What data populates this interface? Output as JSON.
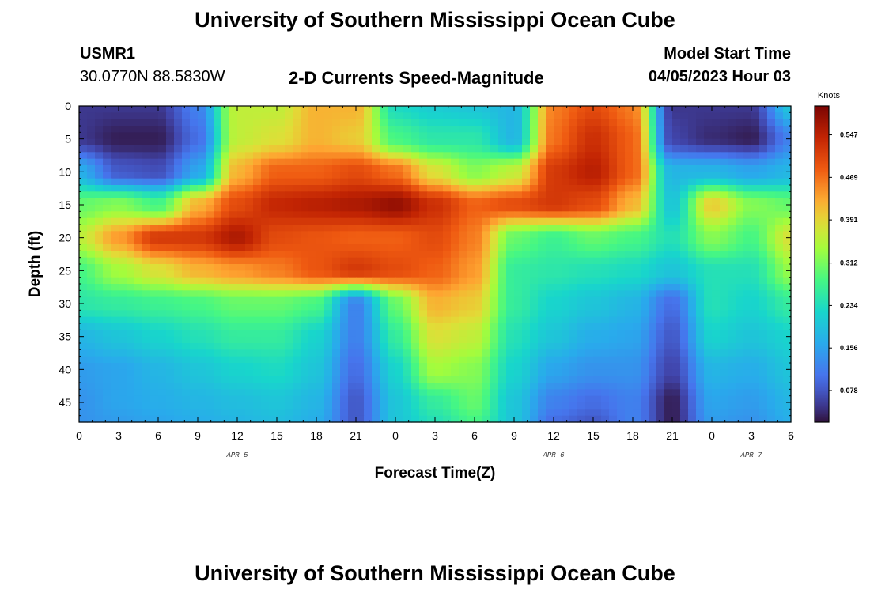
{
  "header": {
    "title": "University of Southern Mississippi Ocean Cube",
    "station_id": "USMR1",
    "coordinates": "30.0770N  88.5830W",
    "subtitle": "2-D Currents Speed-Magnitude",
    "model_start_label": "Model Start Time",
    "model_start_value": "04/05/2023 Hour 03"
  },
  "footer": {
    "title": "University of Southern Mississippi Ocean Cube"
  },
  "chart_data": {
    "type": "heatmap",
    "title": "2-D Currents Speed-Magnitude",
    "xlabel": "Forecast Time(Z)",
    "ylabel": "Depth (ft)",
    "x_tick_labels": [
      "0",
      "3",
      "6",
      "9",
      "12",
      "15",
      "18",
      "21",
      "0",
      "3",
      "6",
      "9",
      "12",
      "15",
      "18",
      "21",
      "0",
      "3",
      "6"
    ],
    "x_date_labels": [
      "APR 5",
      "APR 6",
      "APR 7"
    ],
    "x_range_hours": [
      0,
      54
    ],
    "y_tick_labels": [
      "0",
      "5",
      "10",
      "15",
      "20",
      "25",
      "30",
      "35",
      "40",
      "45"
    ],
    "ylim": [
      0,
      48
    ],
    "y_inverted": true,
    "colorbar": {
      "title": "Knots",
      "tick_labels": [
        "0.078",
        "0.156",
        "0.234",
        "0.312",
        "0.391",
        "0.469",
        "0.547"
      ],
      "ticks": [
        0.078,
        0.156,
        0.234,
        0.312,
        0.391,
        0.469,
        0.547
      ],
      "range": [
        0.02,
        0.6
      ],
      "colormap": "turbo"
    },
    "grid_x_hours": [
      0,
      3,
      6,
      9,
      12,
      15,
      18,
      21,
      24,
      27,
      30,
      33,
      36,
      39,
      42,
      45,
      48,
      51,
      54
    ],
    "grid_y_depth_ft": [
      0,
      5,
      10,
      15,
      20,
      25,
      30,
      35,
      40,
      45,
      48
    ],
    "values_knots": [
      [
        0.05,
        0.05,
        0.05,
        0.12,
        0.36,
        0.36,
        0.42,
        0.42,
        0.23,
        0.21,
        0.2,
        0.18,
        0.46,
        0.5,
        0.46,
        0.05,
        0.05,
        0.05,
        0.2
      ],
      [
        0.05,
        0.03,
        0.03,
        0.1,
        0.36,
        0.38,
        0.42,
        0.4,
        0.28,
        0.25,
        0.25,
        0.18,
        0.47,
        0.53,
        0.48,
        0.06,
        0.04,
        0.03,
        0.12
      ],
      [
        0.17,
        0.08,
        0.07,
        0.16,
        0.42,
        0.48,
        0.48,
        0.5,
        0.47,
        0.38,
        0.32,
        0.36,
        0.52,
        0.55,
        0.48,
        0.18,
        0.18,
        0.16,
        0.18
      ],
      [
        0.3,
        0.32,
        0.28,
        0.42,
        0.5,
        0.54,
        0.55,
        0.56,
        0.58,
        0.53,
        0.48,
        0.5,
        0.52,
        0.5,
        0.42,
        0.2,
        0.4,
        0.32,
        0.3
      ],
      [
        0.36,
        0.44,
        0.52,
        0.52,
        0.56,
        0.5,
        0.49,
        0.48,
        0.48,
        0.5,
        0.46,
        0.3,
        0.27,
        0.3,
        0.28,
        0.24,
        0.32,
        0.28,
        0.38
      ],
      [
        0.28,
        0.34,
        0.38,
        0.42,
        0.44,
        0.46,
        0.49,
        0.52,
        0.5,
        0.48,
        0.44,
        0.26,
        0.25,
        0.24,
        0.23,
        0.2,
        0.24,
        0.24,
        0.33
      ],
      [
        0.25,
        0.26,
        0.27,
        0.28,
        0.3,
        0.3,
        0.28,
        0.12,
        0.3,
        0.42,
        0.4,
        0.26,
        0.22,
        0.2,
        0.18,
        0.1,
        0.24,
        0.22,
        0.26
      ],
      [
        0.18,
        0.2,
        0.22,
        0.24,
        0.26,
        0.26,
        0.22,
        0.12,
        0.26,
        0.38,
        0.36,
        0.24,
        0.2,
        0.17,
        0.16,
        0.08,
        0.22,
        0.2,
        0.22
      ],
      [
        0.15,
        0.16,
        0.18,
        0.2,
        0.22,
        0.23,
        0.2,
        0.1,
        0.22,
        0.34,
        0.32,
        0.22,
        0.16,
        0.14,
        0.14,
        0.06,
        0.18,
        0.17,
        0.2
      ],
      [
        0.14,
        0.16,
        0.17,
        0.18,
        0.19,
        0.2,
        0.18,
        0.08,
        0.2,
        0.26,
        0.3,
        0.2,
        0.12,
        0.1,
        0.12,
        0.03,
        0.16,
        0.15,
        0.18
      ],
      [
        0.14,
        0.15,
        0.16,
        0.17,
        0.18,
        0.19,
        0.17,
        0.08,
        0.2,
        0.24,
        0.28,
        0.2,
        0.1,
        0.08,
        0.12,
        0.03,
        0.15,
        0.14,
        0.17
      ]
    ]
  }
}
